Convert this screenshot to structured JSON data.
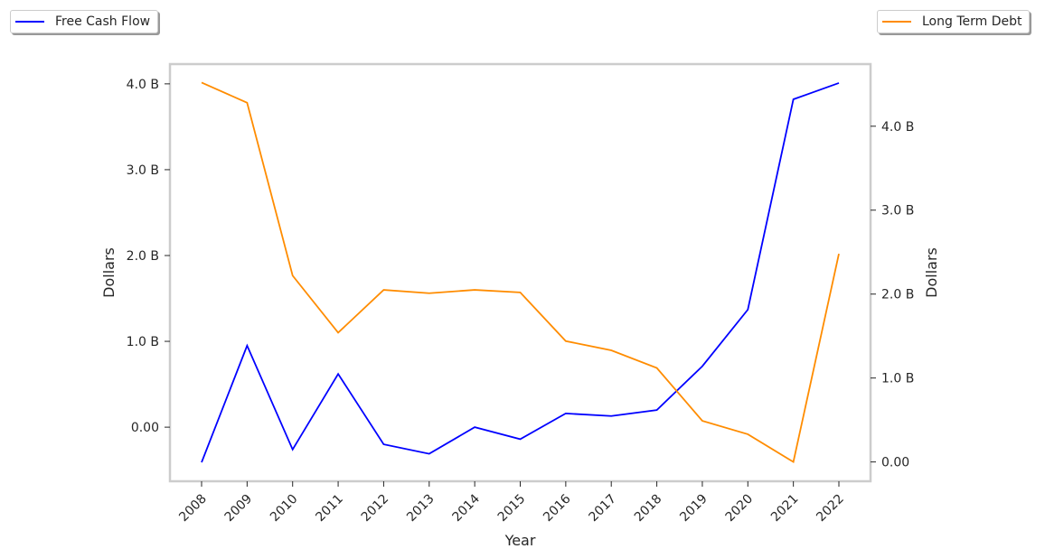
{
  "chart_data": {
    "type": "line",
    "x": [
      2008,
      2009,
      2010,
      2011,
      2012,
      2013,
      2014,
      2015,
      2016,
      2017,
      2018,
      2019,
      2020,
      2021,
      2022
    ],
    "xlabel": "Year",
    "series": [
      {
        "name": "Free Cash Flow",
        "axis": "left",
        "color": "#0000ff",
        "values": [
          -0.41,
          0.95,
          -0.26,
          0.62,
          -0.2,
          -0.31,
          0.0,
          -0.14,
          0.16,
          0.13,
          0.2,
          0.71,
          1.37,
          3.82,
          4.01
        ]
      },
      {
        "name": "Long Term Debt",
        "axis": "right",
        "color": "#ff8c00",
        "values": [
          4.52,
          4.28,
          2.22,
          1.54,
          2.05,
          2.01,
          2.05,
          2.02,
          1.44,
          1.33,
          1.12,
          0.49,
          0.33,
          0.0,
          2.48
        ]
      }
    ],
    "left_axis": {
      "label": "Dollars",
      "ylim": [
        -0.63,
        4.23
      ],
      "ticks": [
        0,
        1,
        2,
        3,
        4
      ],
      "tick_labels": [
        "0.00",
        "1.0 B",
        "2.0 B",
        "3.0 B",
        "4.0 B"
      ]
    },
    "right_axis": {
      "label": "Dollars",
      "ylim": [
        -0.23,
        4.74
      ],
      "ticks": [
        0,
        1,
        2,
        3,
        4
      ],
      "tick_labels": [
        "0.00",
        "1.0 B",
        "2.0 B",
        "3.0 B",
        "4.0 B"
      ]
    },
    "units": "billions of dollars",
    "grid": false,
    "legend_placement": [
      "top-left",
      "top-right"
    ]
  }
}
